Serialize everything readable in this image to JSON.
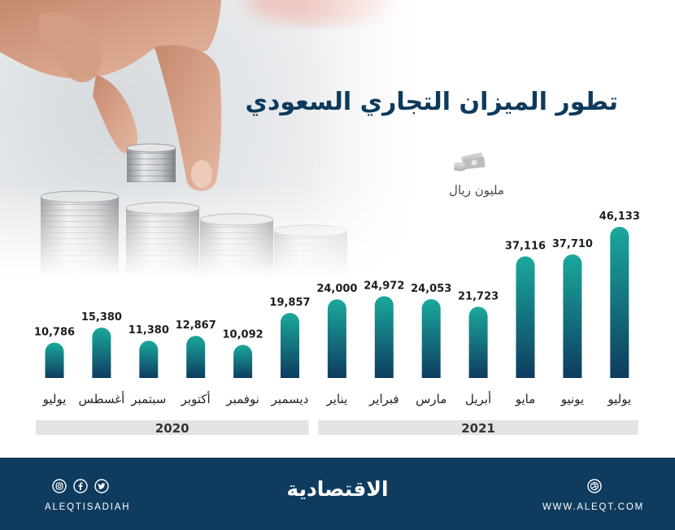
{
  "chart_data": {
    "type": "bar",
    "title": "تطور الميزان التجاري السعودي",
    "unit": "مليون ريال",
    "categories": [
      "يوليو",
      "أغسطس",
      "سبتمبر",
      "أكتوبر",
      "نوفمبر",
      "ديسمبر",
      "يناير",
      "فبراير",
      "مارس",
      "أبريل",
      "مايو",
      "يونيو",
      "يوليو"
    ],
    "years": [
      "2020",
      "2020",
      "2020",
      "2020",
      "2020",
      "2020",
      "2021",
      "2021",
      "2021",
      "2021",
      "2021",
      "2021",
      "2021"
    ],
    "values": [
      10786,
      15380,
      11380,
      12867,
      10092,
      19857,
      24000,
      24972,
      24053,
      21723,
      37116,
      37710,
      46133
    ],
    "value_labels": [
      "10,786",
      "15,380",
      "11,380",
      "12,867",
      "10,092",
      "19,857",
      "24,000",
      "24,972",
      "24,053",
      "21,723",
      "37,116",
      "37,710",
      "46,133"
    ],
    "grid": false,
    "legend": "none"
  },
  "icons": {
    "unit_icon": "money-icon",
    "social": [
      "instagram-icon",
      "facebook-icon",
      "twitter-icon"
    ],
    "website": "globe-icon"
  },
  "footer": {
    "handle": "ALEQTISADIAH",
    "logo": "الاقتصادية",
    "website": "WWW.ALEQT.COM"
  },
  "colors": {
    "title": "#0d3a5c",
    "bar_top": "#1aa99c",
    "bar_bottom": "#0e3c60",
    "year_strip": "#e3e3e3",
    "footer_bg": "#0f3b5f"
  }
}
